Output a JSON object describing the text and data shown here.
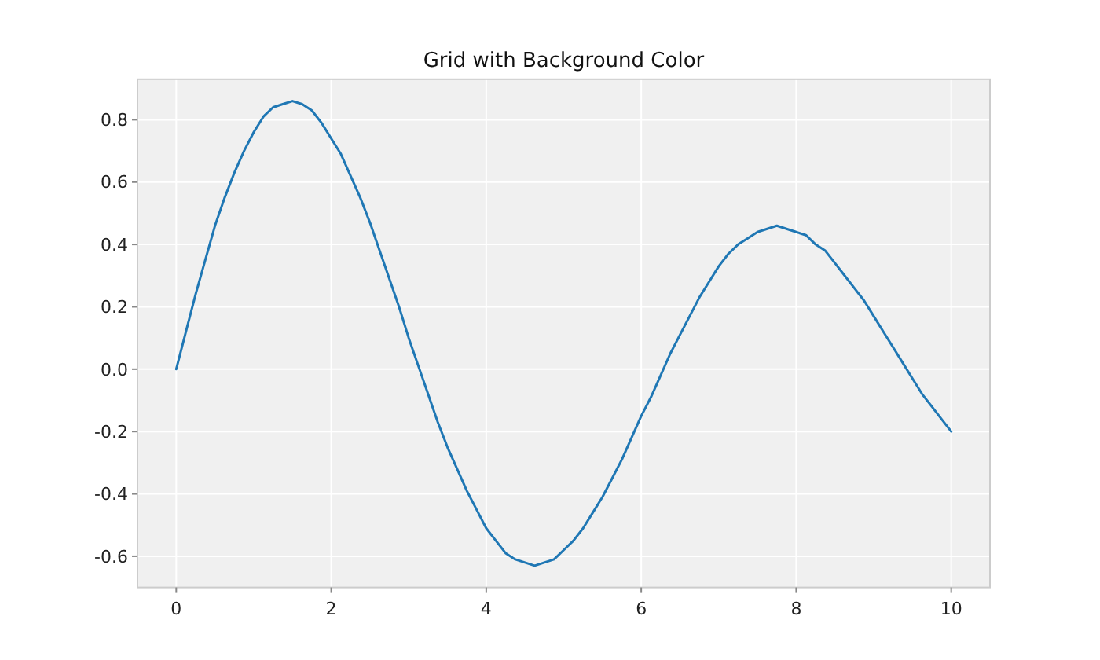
{
  "chart_data": {
    "type": "line",
    "title": "Grid with Background Color",
    "x": [
      0,
      0.125,
      0.25,
      0.375,
      0.5,
      0.625,
      0.75,
      0.875,
      1,
      1.125,
      1.25,
      1.375,
      1.5,
      1.625,
      1.75,
      1.875,
      2,
      2.125,
      2.25,
      2.375,
      2.5,
      2.625,
      2.75,
      2.875,
      3,
      3.125,
      3.25,
      3.375,
      3.5,
      3.625,
      3.75,
      3.875,
      4,
      4.125,
      4.25,
      4.375,
      4.5,
      4.625,
      4.75,
      4.875,
      5,
      5.125,
      5.25,
      5.375,
      5.5,
      5.625,
      5.75,
      5.875,
      6,
      6.125,
      6.25,
      6.375,
      6.5,
      6.625,
      6.75,
      6.875,
      7,
      7.125,
      7.25,
      7.375,
      7.5,
      7.625,
      7.75,
      7.875,
      8,
      8.125,
      8.25,
      8.375,
      8.5,
      8.625,
      8.75,
      8.875,
      9,
      9.125,
      9.25,
      9.375,
      9.5,
      9.625,
      9.75,
      9.875,
      10
    ],
    "series": [
      {
        "color": "#1f77b4",
        "values": [
          0,
          0.12,
          0.24,
          0.35,
          0.46,
          0.55,
          0.63,
          0.7,
          0.76,
          0.81,
          0.84,
          0.85,
          0.86,
          0.85,
          0.83,
          0.79,
          0.74,
          0.69,
          0.62,
          0.55,
          0.47,
          0.38,
          0.29,
          0.2,
          0.1,
          0.01,
          -0.08,
          -0.17,
          -0.25,
          -0.32,
          -0.39,
          -0.45,
          -0.51,
          -0.55,
          -0.59,
          -0.61,
          -0.62,
          -0.63,
          -0.62,
          -0.61,
          -0.58,
          -0.55,
          -0.51,
          -0.46,
          -0.41,
          -0.35,
          -0.29,
          -0.22,
          -0.15,
          -0.09,
          -0.02,
          0.05,
          0.11,
          0.17,
          0.23,
          0.28,
          0.33,
          0.37,
          0.4,
          0.42,
          0.44,
          0.45,
          0.46,
          0.45,
          0.44,
          0.43,
          0.4,
          0.38,
          0.34,
          0.3,
          0.26,
          0.22,
          0.17,
          0.12,
          0.07,
          0.02,
          -0.03,
          -0.08,
          -0.12,
          -0.16,
          -0.2
        ]
      }
    ],
    "xlim": [
      -0.5,
      10.5
    ],
    "xticks": [
      0,
      2,
      4,
      6,
      8,
      10
    ],
    "ylim": [
      -0.7,
      0.93
    ],
    "yticks": [
      {
        "value": -0.6,
        "label": "-0.6"
      },
      {
        "value": -0.4,
        "label": "-0.4"
      },
      {
        "value": -0.2,
        "label": "-0.2"
      },
      {
        "value": 0,
        "label": "0.0"
      },
      {
        "value": 0.2,
        "label": "0.2"
      },
      {
        "value": 0.4,
        "label": "0.4"
      },
      {
        "value": 0.6,
        "label": "0.6"
      },
      {
        "value": 0.8,
        "label": "0.8"
      }
    ],
    "grid": true,
    "marker": "none",
    "line_style": "solid"
  }
}
